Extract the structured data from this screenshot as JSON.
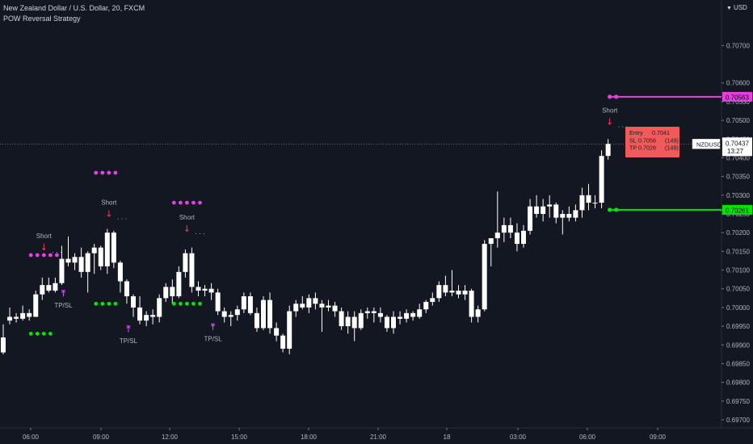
{
  "header": {
    "symbol_title": "New Zealand Dollar / U.S. Dollar, 20, FXCM",
    "indicator_title": "POW Reversal Strategy",
    "currency": "USD",
    "currency_icon": "arrow-down-icon"
  },
  "colors": {
    "background": "#131722",
    "candle": "#ffffff",
    "grid_line": "#2a2e39",
    "short_arrow": "#ff3b5c",
    "tp_marker": "#e040fb",
    "stop_dots": "#e83fe0",
    "target_dots": "#00e600",
    "stop_line": "#e83fe0",
    "target_line": "#00e600",
    "trade_box": "#f05a5a"
  },
  "chart_data": {
    "type": "candlestick",
    "symbol": "NZDUSD",
    "timeframe": "20",
    "ylim": [
      0.697,
      0.708
    ],
    "y_ticks": [
      "0.70700",
      "0.70600",
      "0.70550",
      "0.70500",
      "0.70450",
      "0.70400",
      "0.70350",
      "0.70300",
      "0.70250",
      "0.70200",
      "0.70150",
      "0.70100",
      "0.70050",
      "0.70000",
      "0.69950",
      "0.69900",
      "0.69850",
      "0.69800",
      "0.69750",
      "0.69700"
    ],
    "x_labels": [
      "06:00",
      "09:00",
      "12:00",
      "15:00",
      "18:00",
      "21:00",
      "18",
      "03:00",
      "06:00",
      "09:00"
    ],
    "candles": [
      [
        0.6992,
        0.69955,
        0.69875,
        0.6988
      ],
      [
        0.69965,
        0.7,
        0.69955,
        0.69975
      ],
      [
        0.69975,
        0.69985,
        0.6996,
        0.6997
      ],
      [
        0.6997,
        0.70005,
        0.69965,
        0.69985
      ],
      [
        0.69985,
        0.69995,
        0.69965,
        0.69975
      ],
      [
        0.69975,
        0.70045,
        0.69975,
        0.70035
      ],
      [
        0.70035,
        0.7008,
        0.7002,
        0.7006
      ],
      [
        0.7006,
        0.7008,
        0.7004,
        0.70045
      ],
      [
        0.70045,
        0.7008,
        0.7004,
        0.70065
      ],
      [
        0.70065,
        0.70165,
        0.7006,
        0.7013
      ],
      [
        0.7013,
        0.7019,
        0.7011,
        0.7012
      ],
      [
        0.7012,
        0.70145,
        0.701,
        0.70135
      ],
      [
        0.70135,
        0.7016,
        0.7008,
        0.70095
      ],
      [
        0.70095,
        0.7015,
        0.7004,
        0.70145
      ],
      [
        0.70145,
        0.7017,
        0.7009,
        0.7016
      ],
      [
        0.7016,
        0.70165,
        0.701,
        0.7011
      ],
      [
        0.7011,
        0.7021,
        0.7009,
        0.702
      ],
      [
        0.702,
        0.70205,
        0.70105,
        0.7012
      ],
      [
        0.7012,
        0.70125,
        0.7004,
        0.7007
      ],
      [
        0.7007,
        0.70075,
        0.7001,
        0.7003
      ],
      [
        0.7003,
        0.70035,
        0.69975,
        0.7
      ],
      [
        0.7,
        0.7003,
        0.69955,
        0.69965
      ],
      [
        0.69965,
        0.6999,
        0.6995,
        0.6998
      ],
      [
        0.6998,
        0.69995,
        0.69955,
        0.69975
      ],
      [
        0.69975,
        0.70035,
        0.6996,
        0.70025
      ],
      [
        0.70025,
        0.70065,
        0.70015,
        0.70055
      ],
      [
        0.70055,
        0.70075,
        0.7001,
        0.7003
      ],
      [
        0.7003,
        0.7011,
        0.70025,
        0.70095
      ],
      [
        0.70095,
        0.70155,
        0.7008,
        0.70145
      ],
      [
        0.70145,
        0.7016,
        0.7004,
        0.70055
      ],
      [
        0.70055,
        0.7007,
        0.7003,
        0.70045
      ],
      [
        0.70045,
        0.7006,
        0.7003,
        0.7005
      ],
      [
        0.7005,
        0.70065,
        0.7002,
        0.7004
      ],
      [
        0.7004,
        0.7005,
        0.6998,
        0.6999
      ],
      [
        0.6999,
        0.7,
        0.6996,
        0.69975
      ],
      [
        0.69975,
        0.6999,
        0.6995,
        0.6998
      ],
      [
        0.6998,
        0.70005,
        0.69965,
        0.69995
      ],
      [
        0.69995,
        0.7004,
        0.69985,
        0.7003
      ],
      [
        0.7003,
        0.7004,
        0.6998,
        0.69985
      ],
      [
        0.69985,
        0.7,
        0.69935,
        0.69945
      ],
      [
        0.69945,
        0.7003,
        0.6994,
        0.7002
      ],
      [
        0.7002,
        0.7004,
        0.6993,
        0.69945
      ],
      [
        0.69945,
        0.6996,
        0.6991,
        0.69925
      ],
      [
        0.69925,
        0.6993,
        0.6988,
        0.6989
      ],
      [
        0.6989,
        0.70005,
        0.69875,
        0.6999
      ],
      [
        0.6999,
        0.7002,
        0.69975,
        0.7001
      ],
      [
        0.7001,
        0.7003,
        0.69995,
        0.7
      ],
      [
        0.7,
        0.70035,
        0.69985,
        0.70025
      ],
      [
        0.70025,
        0.7004,
        0.69995,
        0.7001
      ],
      [
        0.7001,
        0.7002,
        0.69935,
        0.7
      ],
      [
        0.7,
        0.7002,
        0.6999,
        0.70005
      ],
      [
        0.70005,
        0.70015,
        0.69975,
        0.6999
      ],
      [
        0.6999,
        0.7,
        0.6994,
        0.6995
      ],
      [
        0.6995,
        0.6999,
        0.6993,
        0.69975
      ],
      [
        0.69975,
        0.6999,
        0.6991,
        0.69945
      ],
      [
        0.69945,
        0.69995,
        0.6994,
        0.69985
      ],
      [
        0.69985,
        0.7,
        0.6997,
        0.6999
      ],
      [
        0.6999,
        0.7,
        0.6996,
        0.69985
      ],
      [
        0.69985,
        0.7,
        0.6996,
        0.69975
      ],
      [
        0.69975,
        0.6998,
        0.69935,
        0.69945
      ],
      [
        0.69945,
        0.6999,
        0.6993,
        0.69975
      ],
      [
        0.69975,
        0.6999,
        0.69955,
        0.6997
      ],
      [
        0.6997,
        0.69995,
        0.6996,
        0.69985
      ],
      [
        0.69985,
        0.6999,
        0.69965,
        0.69975
      ],
      [
        0.69975,
        0.7001,
        0.6997,
        0.69995
      ],
      [
        0.69995,
        0.7002,
        0.69985,
        0.70015
      ],
      [
        0.70015,
        0.7004,
        0.70005,
        0.70025
      ],
      [
        0.70025,
        0.7007,
        0.70015,
        0.7006
      ],
      [
        0.7006,
        0.70085,
        0.7003,
        0.7004
      ],
      [
        0.7004,
        0.701,
        0.7003,
        0.70045
      ],
      [
        0.70045,
        0.7006,
        0.70025,
        0.70035
      ],
      [
        0.70035,
        0.7006,
        0.7002,
        0.70045
      ],
      [
        0.70045,
        0.7005,
        0.6996,
        0.69975
      ],
      [
        0.69975,
        0.70005,
        0.6996,
        0.69995
      ],
      [
        0.69995,
        0.7018,
        0.6999,
        0.7017
      ],
      [
        0.7017,
        0.70185,
        0.7011,
        0.70185
      ],
      [
        0.70185,
        0.7031,
        0.7016,
        0.702
      ],
      [
        0.702,
        0.7024,
        0.70175,
        0.7022
      ],
      [
        0.7022,
        0.7024,
        0.70185,
        0.702
      ],
      [
        0.702,
        0.70225,
        0.7015,
        0.7017
      ],
      [
        0.7017,
        0.7022,
        0.7016,
        0.70205
      ],
      [
        0.70205,
        0.7029,
        0.70195,
        0.7027
      ],
      [
        0.7027,
        0.703,
        0.7024,
        0.7025
      ],
      [
        0.7025,
        0.7029,
        0.7023,
        0.7027
      ],
      [
        0.7027,
        0.703,
        0.7024,
        0.70275
      ],
      [
        0.70275,
        0.7028,
        0.70225,
        0.7024
      ],
      [
        0.7024,
        0.7026,
        0.70195,
        0.7025
      ],
      [
        0.7025,
        0.7027,
        0.7023,
        0.7024
      ],
      [
        0.7024,
        0.70275,
        0.7023,
        0.7026
      ],
      [
        0.7026,
        0.7032,
        0.7024,
        0.703
      ],
      [
        0.703,
        0.7033,
        0.7026,
        0.7028
      ],
      [
        0.7028,
        0.703,
        0.70265,
        0.7028
      ],
      [
        0.7028,
        0.7042,
        0.70265,
        0.70405
      ],
      [
        0.70405,
        0.7045,
        0.70395,
        0.70437
      ]
    ],
    "current_price": {
      "symbol": "NZDUSD",
      "price": "0.70437",
      "countdown": "13:27"
    },
    "levels": [
      {
        "name": "stop",
        "price": "0.70563",
        "color": "#e83fe0"
      },
      {
        "name": "target",
        "price": "0.70261",
        "color": "#00e600"
      }
    ],
    "signals": [
      {
        "label": "Short",
        "candle": 6,
        "price": 0.70155,
        "label_overlaps_text": true
      },
      {
        "label": "Short",
        "candle": 16,
        "price": 0.70245
      },
      {
        "label": "Short",
        "candle": 28,
        "price": 0.70205
      },
      {
        "label": "Short",
        "candle": 93,
        "price": 0.7049
      }
    ],
    "tp_sl_markers": [
      {
        "label": "TP/SL",
        "candle": 9,
        "price": 0.7003
      },
      {
        "label": "TP/SL",
        "candle": 19,
        "price": 0.69935
      },
      {
        "label": "TP/SL",
        "candle": 32,
        "price": 0.6994
      }
    ],
    "stop_dot_groups": [
      {
        "start": 14,
        "count": 4,
        "price": 0.7036
      },
      {
        "start": 26,
        "count": 5,
        "price": 0.7028
      },
      {
        "start": 4,
        "count": 5,
        "price": 0.7014
      }
    ],
    "target_dot_groups": [
      {
        "start": 4,
        "count": 4,
        "price": 0.6993
      },
      {
        "start": 14,
        "count": 4,
        "price": 0.7001
      },
      {
        "start": 26,
        "count": 5,
        "price": 0.7001
      }
    ],
    "trade_box": {
      "rows": [
        {
          "label": "Entry",
          "value": "0.7041",
          "pips": ""
        },
        {
          "label": "SL",
          "value": "0.7056",
          "pips": "(149)"
        },
        {
          "label": "TP",
          "value": "0.7026",
          "pips": "(149)"
        }
      ]
    }
  }
}
